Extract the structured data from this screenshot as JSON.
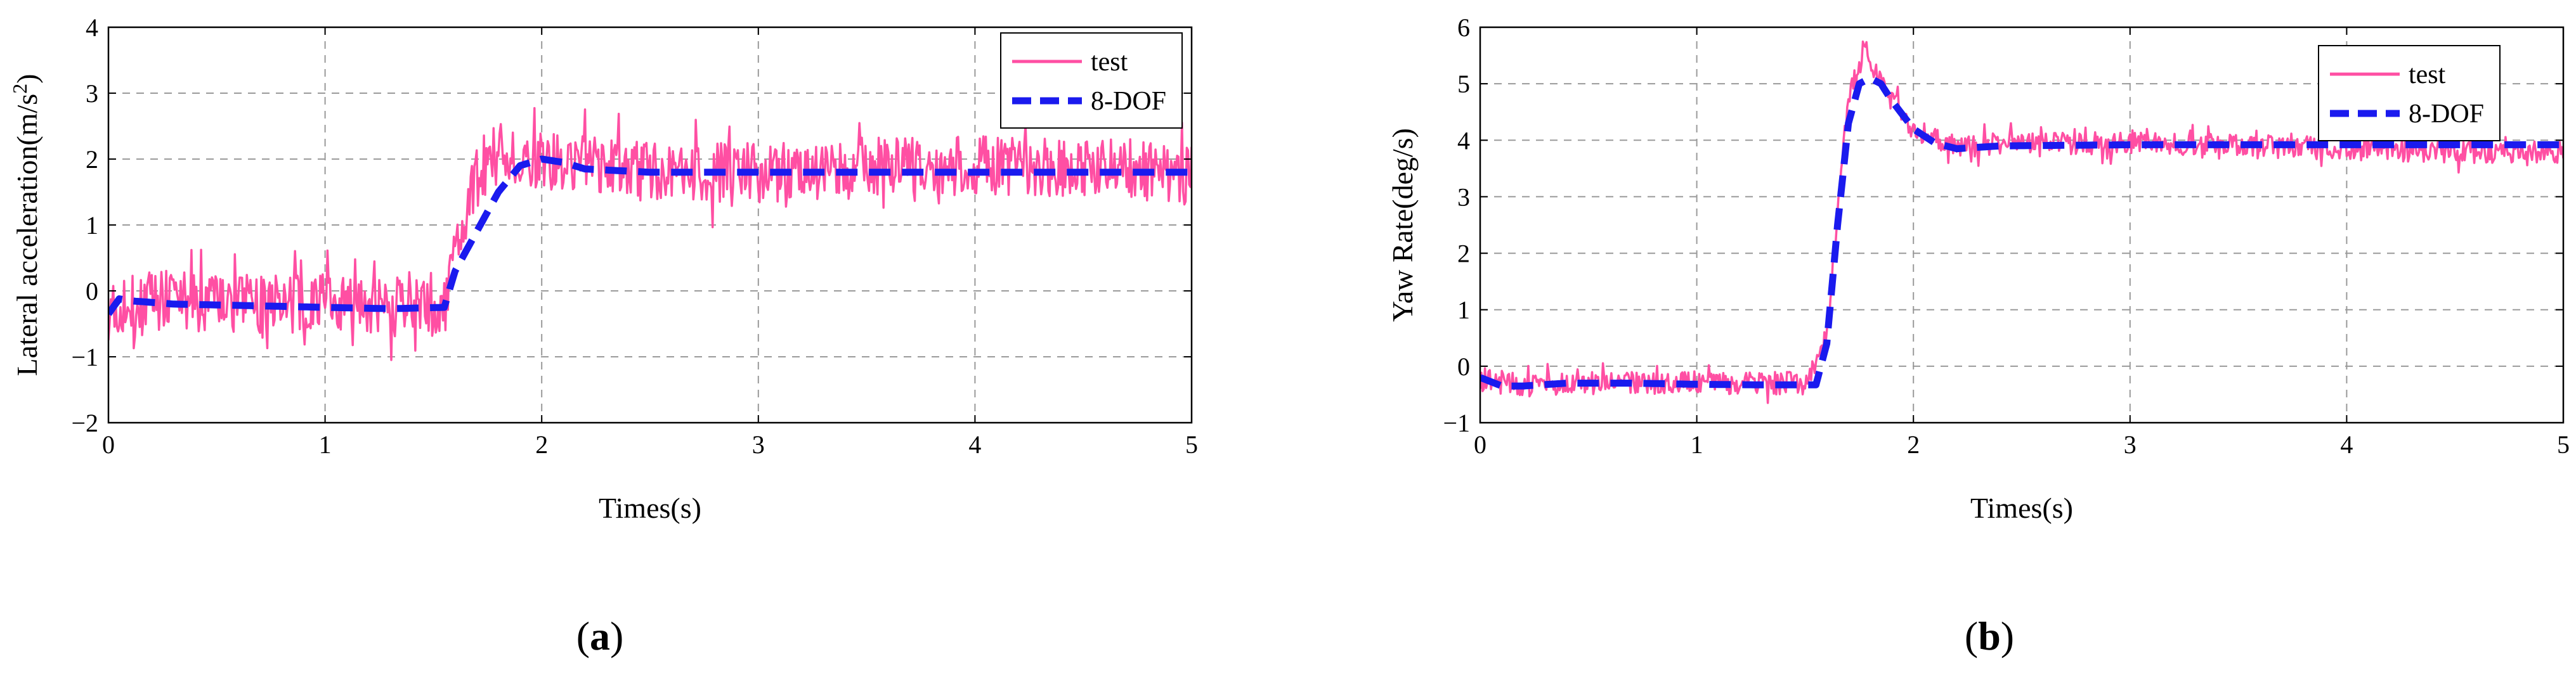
{
  "chart_data": [
    {
      "type": "line",
      "panel_label": "a",
      "xlabel": "Times(s)",
      "ylabel": "Lateral acceleration(m/s",
      "ylabel_sup": "2",
      "ylabel_close": ")",
      "xlim": [
        0,
        5
      ],
      "ylim": [
        -2,
        4
      ],
      "xticks": [
        0,
        1,
        2,
        3,
        4,
        5
      ],
      "yticks": [
        -2,
        -1,
        0,
        1,
        2,
        3,
        4
      ],
      "grid": true,
      "legend_position": "top-right",
      "series": [
        {
          "name": "test",
          "style": "solid-noisy",
          "color": "#ff4fa3",
          "x": [
            0,
            0.2,
            0.5,
            1.0,
            1.4,
            1.55,
            1.6,
            1.7,
            1.8,
            2.0,
            2.2,
            2.5,
            3.0,
            3.5,
            4.0,
            4.5,
            5.0
          ],
          "y": [
            -0.3,
            -0.1,
            -0.2,
            -0.2,
            -0.25,
            -0.3,
            0.6,
            1.7,
            2.1,
            2.0,
            1.9,
            1.8,
            1.8,
            1.85,
            1.9,
            1.85,
            1.8
          ],
          "noise_amplitude": 0.45
        },
        {
          "name": "8-DOF",
          "style": "dashed",
          "color": "#1a1aee",
          "x": [
            0,
            0.05,
            0.1,
            0.3,
            0.6,
            1.0,
            1.3,
            1.55,
            1.6,
            1.7,
            1.8,
            1.9,
            2.0,
            2.1,
            2.2,
            2.5,
            3.0,
            3.5,
            4.0,
            4.5,
            5.0
          ],
          "y": [
            -0.35,
            -0.12,
            -0.15,
            -0.2,
            -0.22,
            -0.25,
            -0.27,
            -0.25,
            0.3,
            0.9,
            1.5,
            1.9,
            2.0,
            1.95,
            1.85,
            1.8,
            1.8,
            1.8,
            1.8,
            1.8,
            1.8
          ]
        }
      ]
    },
    {
      "type": "line",
      "panel_label": "b",
      "xlabel": "Times(s)",
      "ylabel": "Yaw Rate(deg/s)",
      "xlim": [
        0,
        5
      ],
      "ylim": [
        -1,
        6
      ],
      "xticks": [
        0,
        1,
        2,
        3,
        4,
        5
      ],
      "yticks": [
        -1,
        0,
        1,
        2,
        3,
        4,
        5,
        6
      ],
      "grid": true,
      "legend_position": "top-right",
      "series": [
        {
          "name": "test",
          "style": "solid-noisy",
          "color": "#ff4fa3",
          "x": [
            0,
            0.2,
            0.5,
            1.0,
            1.5,
            1.6,
            1.7,
            1.78,
            1.85,
            2.0,
            2.2,
            2.5,
            3.0,
            3.5,
            4.0,
            4.5,
            5.0
          ],
          "y": [
            -0.2,
            -0.35,
            -0.3,
            -0.3,
            -0.3,
            0.5,
            4.8,
            5.6,
            5.0,
            4.2,
            3.9,
            3.95,
            3.95,
            3.9,
            3.85,
            3.8,
            3.8
          ],
          "noise_amplitude": 0.2
        },
        {
          "name": "8-DOF",
          "style": "dashed",
          "color": "#1a1aee",
          "x": [
            0,
            0.1,
            0.2,
            0.4,
            0.7,
            1.0,
            1.3,
            1.55,
            1.6,
            1.65,
            1.7,
            1.75,
            1.8,
            1.85,
            1.9,
            2.0,
            2.1,
            2.2,
            2.4,
            3.0,
            3.5,
            4.0,
            4.5,
            5.0
          ],
          "y": [
            -0.2,
            -0.35,
            -0.35,
            -0.3,
            -0.3,
            -0.32,
            -0.33,
            -0.33,
            0.4,
            2.5,
            4.3,
            5.0,
            5.1,
            5.0,
            4.7,
            4.2,
            3.95,
            3.85,
            3.9,
            3.92,
            3.92,
            3.92,
            3.92,
            3.92
          ]
        }
      ]
    }
  ]
}
